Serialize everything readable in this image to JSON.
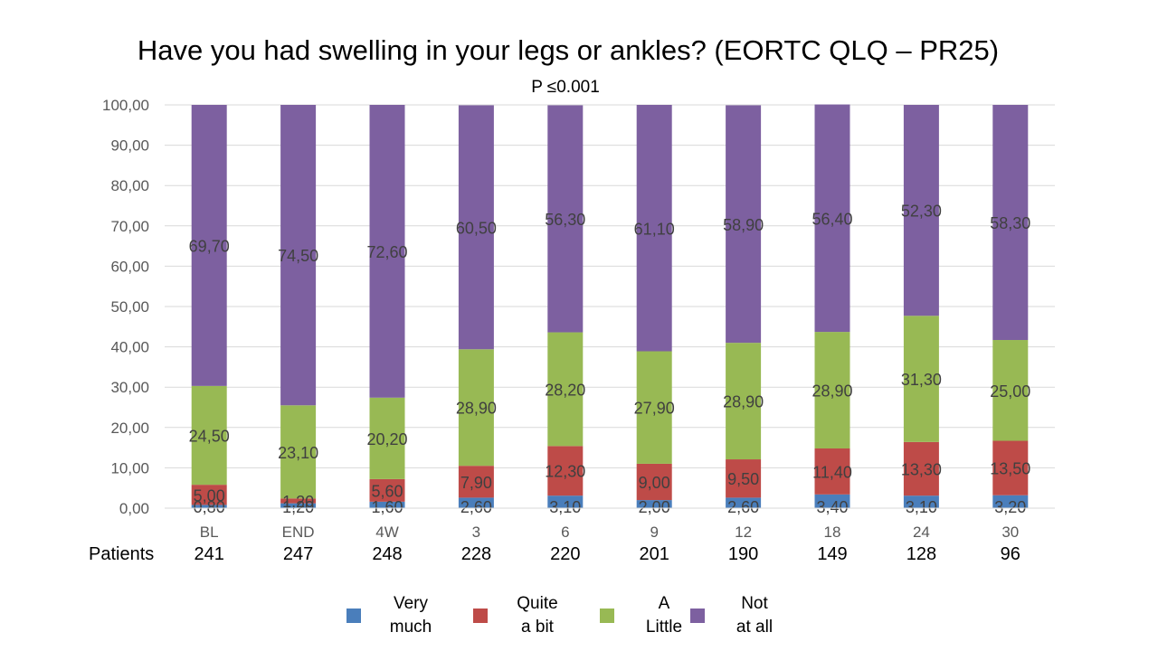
{
  "chart_data": {
    "type": "bar",
    "stacked": true,
    "title": "Have you had swelling in your legs or ankles? (EORTC QLQ – PR25)",
    "subtitle": "P ≤0.001",
    "categories": [
      "BL",
      "END",
      "4W",
      "3",
      "6",
      "9",
      "12",
      "18",
      "24",
      "30"
    ],
    "ylim": [
      0,
      100
    ],
    "yticks": [
      "0,00",
      "10,00",
      "20,00",
      "30,00",
      "40,00",
      "50,00",
      "60,00",
      "70,00",
      "80,00",
      "90,00",
      "100,00"
    ],
    "grid": true,
    "legend_position": "bottom",
    "series": [
      {
        "name": "Very much",
        "color": "#4a7ebb",
        "values": [
          0.8,
          1.2,
          1.6,
          2.6,
          3.1,
          2.0,
          2.6,
          3.4,
          3.1,
          3.2
        ],
        "labels": [
          "0,80",
          "1,20",
          "1,60",
          "2,60",
          "3,10",
          "2,00",
          "2,60",
          "3,40",
          "3,10",
          "3,20"
        ]
      },
      {
        "name": "Quite a bit",
        "color": "#be4b48",
        "values": [
          5.0,
          1.2,
          5.6,
          7.9,
          12.3,
          9.0,
          9.5,
          11.4,
          13.3,
          13.5
        ],
        "labels": [
          "5,00",
          "1,20",
          "5,60",
          "7,90",
          "12,30",
          "9,00",
          "9,50",
          "11,40",
          "13,30",
          "13,50"
        ]
      },
      {
        "name": "A Little",
        "color": "#98b954",
        "values": [
          24.5,
          23.1,
          20.2,
          28.9,
          28.2,
          27.9,
          28.9,
          28.9,
          31.3,
          25.0
        ],
        "labels": [
          "24,50",
          "23,10",
          "20,20",
          "28,90",
          "28,20",
          "27,90",
          "28,90",
          "28,90",
          "31,30",
          "25,00"
        ]
      },
      {
        "name": "Not at all",
        "color": "#7d60a0",
        "values": [
          69.7,
          74.5,
          72.6,
          60.5,
          56.3,
          61.1,
          58.9,
          56.4,
          52.3,
          58.3
        ],
        "labels": [
          "69,70",
          "74,50",
          "72,60",
          "60,50",
          "56,30",
          "61,10",
          "58,90",
          "56,40",
          "52,30",
          "58,30"
        ]
      }
    ]
  },
  "patients": {
    "label": "Patients",
    "values": [
      "241",
      "247",
      "248",
      "228",
      "220",
      "201",
      "190",
      "149",
      "128",
      "96"
    ]
  },
  "legend": [
    {
      "text": "Very\nmuch",
      "color": "#4a7ebb"
    },
    {
      "text": "Quite\na bit",
      "color": "#be4b48"
    },
    {
      "text": "A\nLittle",
      "color": "#98b954"
    },
    {
      "text": "Not\nat all",
      "color": "#7d60a0"
    }
  ]
}
